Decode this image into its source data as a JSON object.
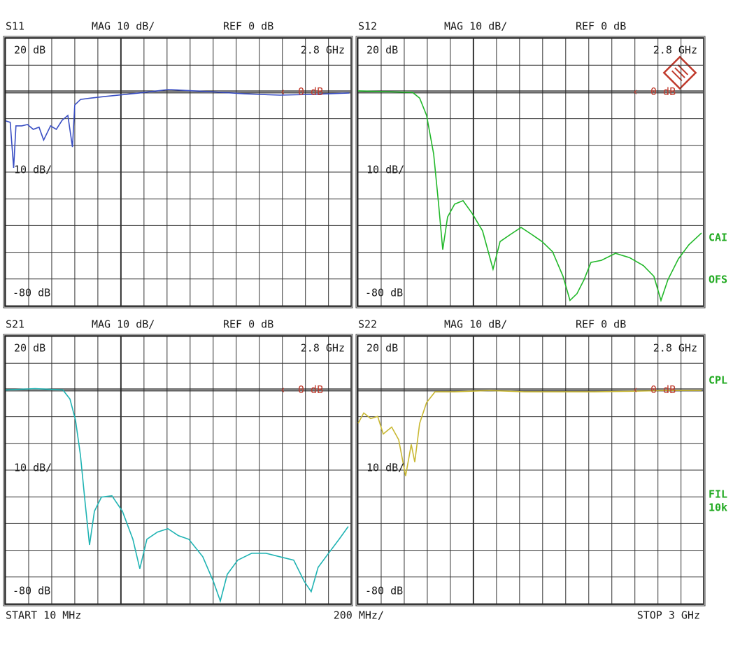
{
  "chart_data": [
    {
      "type": "line",
      "name": "S11",
      "format": "MAG 10 dB/",
      "reference": "REF 0 dB",
      "ref_level": 0,
      "top_label": "20 dB",
      "scale_label": "10 dB/",
      "bottom_label": "-80 dB",
      "marker_label": "2.8 GHz",
      "ref_marker": "0 dB",
      "color": "#3a4fc4",
      "x": [
        10,
        50,
        80,
        100,
        150,
        200,
        250,
        300,
        340,
        400,
        450,
        500,
        550,
        590,
        610,
        660,
        750,
        870,
        1170,
        1420,
        1780,
        2080,
        2390,
        2690,
        2990
      ],
      "values": [
        -10.8,
        -11.4,
        -28.4,
        -12.7,
        -12.7,
        -12.2,
        -14,
        -13.2,
        -18,
        -12.7,
        -14,
        -10.6,
        -8.8,
        -20.6,
        -4.9,
        -2.8,
        -2.3,
        -1.7,
        -0.4,
        0.9,
        0.1,
        -0.7,
        -1.2,
        -0.9,
        -0.4
      ],
      "xlim": [
        10,
        3000
      ],
      "xticks": [
        10,
        210,
        410,
        610,
        810,
        1010,
        1210,
        1410,
        1610,
        1810,
        2010,
        2210,
        2410,
        2610,
        2810
      ],
      "ylim": [
        -80,
        20
      ],
      "yticks": [
        -80,
        -70,
        -60,
        -50,
        -40,
        -30,
        -20,
        -10,
        0,
        10,
        20
      ]
    },
    {
      "type": "line",
      "name": "S12",
      "format": "MAG 10 dB/",
      "reference": "REF 0 dB",
      "ref_level": 0,
      "top_label": "20 dB",
      "scale_label": "10 dB/",
      "bottom_label": "-80 dB",
      "marker_label": "2.8 GHz",
      "ref_marker": "0 dB",
      "color": "#22b82a",
      "x": [
        10,
        240,
        483,
        544,
        604,
        665,
        707,
        744,
        786,
        847,
        920,
        998,
        1089,
        1180,
        1241,
        1332,
        1423,
        1514,
        1605,
        1696,
        1787,
        1847,
        1908,
        1969,
        2029,
        2120,
        2241,
        2363,
        2484,
        2575,
        2636,
        2696,
        2787,
        2878,
        2988
      ],
      "values": [
        0.4,
        0.1,
        -0.2,
        -2.3,
        -8.8,
        -23.2,
        -41.5,
        -59,
        -46.8,
        -42,
        -40.7,
        -45.4,
        -52,
        -66.3,
        -56,
        -53.3,
        -50.7,
        -53.3,
        -56,
        -59.8,
        -69,
        -78,
        -75.5,
        -70.3,
        -63.8,
        -63,
        -60.4,
        -62,
        -65,
        -69,
        -78,
        -70.3,
        -62.5,
        -57.2,
        -52.8
      ],
      "xlim": [
        10,
        3000
      ],
      "xticks": [
        10,
        210,
        410,
        610,
        810,
        1010,
        1210,
        1410,
        1610,
        1810,
        2010,
        2210,
        2410,
        2610,
        2810
      ],
      "ylim": [
        -80,
        20
      ],
      "yticks": [
        -80,
        -70,
        -60,
        -50,
        -40,
        -30,
        -20,
        -10,
        0,
        10,
        20
      ]
    },
    {
      "type": "line",
      "name": "S21",
      "format": "MAG 10 dB/",
      "reference": "REF 0 dB",
      "ref_level": 0,
      "top_label": "20 dB",
      "scale_label": "10 dB/",
      "bottom_label": "-80 dB",
      "marker_label": "2.8 GHz",
      "ref_marker": "0 dB",
      "color": "#1fb3b3",
      "x": [
        10,
        265,
        507,
        568,
        616,
        659,
        701,
        738,
        780,
        841,
        932,
        1023,
        1114,
        1174,
        1235,
        1326,
        1417,
        1508,
        1599,
        1720,
        1811,
        1872,
        1932,
        2023,
        2145,
        2266,
        2387,
        2508,
        2599,
        2660,
        2720,
        2811,
        2902,
        2981
      ],
      "values": [
        0,
        0.5,
        0,
        -3.4,
        -11.2,
        -24.4,
        -42.7,
        -58,
        -45.4,
        -40.1,
        -39.6,
        -45.4,
        -55.9,
        -66.9,
        -55.9,
        -53.2,
        -51.9,
        -54.5,
        -55.9,
        -62.4,
        -71.6,
        -79,
        -69,
        -63.7,
        -61.1,
        -61.1,
        -62.4,
        -63.7,
        -71.6,
        -75.5,
        -66.4,
        -61.1,
        -55.9,
        -51.1
      ],
      "xlim": [
        10,
        3000
      ],
      "xticks": [
        10,
        210,
        410,
        610,
        810,
        1010,
        1210,
        1410,
        1610,
        1810,
        2010,
        2210,
        2410,
        2610,
        2810
      ],
      "ylim": [
        -80,
        20
      ],
      "yticks": [
        -80,
        -70,
        -60,
        -50,
        -40,
        -30,
        -20,
        -10,
        0,
        10,
        20
      ]
    },
    {
      "type": "line",
      "name": "S22",
      "format": "MAG 10 dB/",
      "reference": "REF 0 dB",
      "ref_level": 0,
      "top_label": "20 dB",
      "scale_label": "10 dB/",
      "bottom_label": "-80 dB",
      "marker_label": "2.8 GHz",
      "ref_marker": "0 dB",
      "color": "#c9b833",
      "x": [
        10,
        59,
        119,
        180,
        228,
        301,
        362,
        422,
        471,
        501,
        544,
        604,
        677,
        847,
        1150,
        1453,
        1757,
        2060,
        2363,
        2666,
        2988
      ],
      "values": [
        -12.5,
        -8.6,
        -10.7,
        -9.9,
        -16.5,
        -13.9,
        -18.6,
        -32.2,
        -20.4,
        -27,
        -12.5,
        -4.7,
        -0.7,
        -0.7,
        -0.2,
        -0.7,
        -0.7,
        -0.7,
        -0.5,
        -0.2,
        -0.2
      ],
      "xlim": [
        10,
        3000
      ],
      "xticks": [
        10,
        210,
        410,
        610,
        810,
        1010,
        1210,
        1410,
        1610,
        1810,
        2010,
        2210,
        2410,
        2610,
        2810
      ],
      "ylim": [
        -80,
        20
      ],
      "yticks": [
        -80,
        -70,
        -60,
        -50,
        -40,
        -30,
        -20,
        -10,
        0,
        10,
        20
      ]
    }
  ],
  "footer": {
    "start": "START 10 MHz",
    "span": "200 MHz/",
    "stop": "STOP 3 GHz"
  },
  "side_labels": [
    "CAI",
    "OFS",
    "CPL",
    "FIL",
    "10k"
  ]
}
